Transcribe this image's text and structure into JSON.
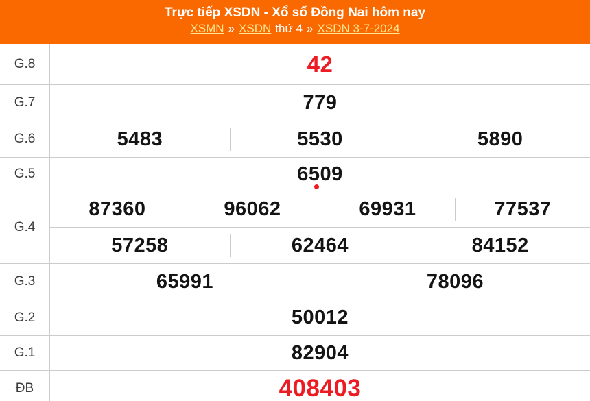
{
  "header": {
    "title": "Trực tiếp XSDN - Xổ số Đồng Nai hôm nay",
    "breadcrumb": [
      {
        "label": "XSMN",
        "link": true
      },
      {
        "label": "»",
        "link": false
      },
      {
        "label": "XSDN",
        "link": true
      },
      {
        "label": "thứ 4",
        "link": false
      },
      {
        "label": "»",
        "link": false
      },
      {
        "label": "XSDN 3-7-2024",
        "link": true
      }
    ]
  },
  "colors": {
    "header_bg": "#FA6900",
    "accent_red": "#EC1C24",
    "link_yellow": "#FFE793",
    "border": "#CCCCCC",
    "value_text": "#141414",
    "label_text": "#3D3D3D"
  },
  "results": {
    "rows": [
      {
        "id": "g8",
        "label": "G.8",
        "style": "red-large",
        "lines": [
          [
            "42"
          ]
        ]
      },
      {
        "id": "g7",
        "label": "G.7",
        "style": "",
        "lines": [
          [
            "779"
          ]
        ]
      },
      {
        "id": "g6",
        "label": "G.6",
        "style": "",
        "lines": [
          [
            "5483",
            "5530",
            "5890"
          ]
        ]
      },
      {
        "id": "g5",
        "label": "G.5",
        "style": "",
        "lines": [
          [
            "6509"
          ]
        ]
      },
      {
        "id": "g4",
        "label": "G.4",
        "style": "",
        "lines": [
          [
            "87360",
            "96062",
            "69931",
            "77537"
          ],
          [
            "57258",
            "62464",
            "84152"
          ]
        ]
      },
      {
        "id": "g3",
        "label": "G.3",
        "style": "",
        "lines": [
          [
            "65991",
            "78096"
          ]
        ]
      },
      {
        "id": "g2",
        "label": "G.2",
        "style": "",
        "lines": [
          [
            "50012"
          ]
        ]
      },
      {
        "id": "g1",
        "label": "G.1",
        "style": "",
        "lines": [
          [
            "82904"
          ]
        ]
      },
      {
        "id": "db",
        "label": "ĐB",
        "style": "red-xlarge",
        "lines": [
          [
            "408403"
          ]
        ]
      }
    ]
  }
}
